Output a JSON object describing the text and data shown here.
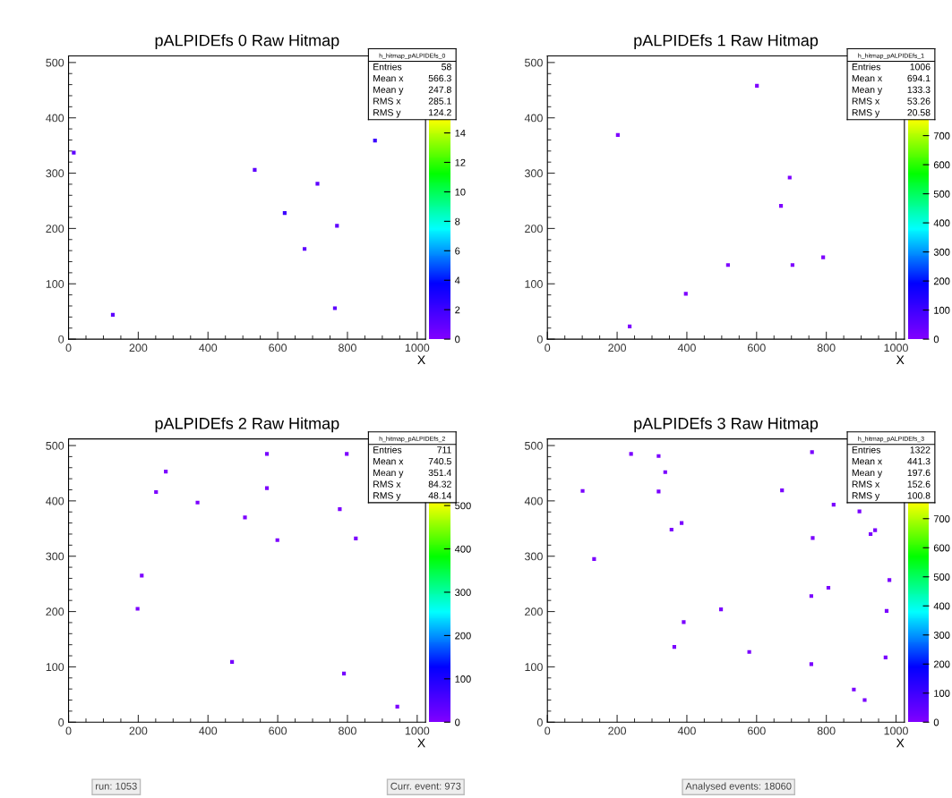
{
  "chart_data": [
    {
      "type": "scatter",
      "title": "pALPIDEfs 0 Raw Hitmap",
      "xlabel": "X",
      "xlim": [
        0,
        1024
      ],
      "ylim": [
        0,
        512
      ],
      "xticks": [
        0,
        200,
        400,
        600,
        800,
        1000
      ],
      "yticks": [
        0,
        100,
        200,
        300,
        400,
        500
      ],
      "marker": "square",
      "x": [
        127,
        534,
        620,
        770,
        677,
        714,
        879,
        764,
        15
      ],
      "values": [
        44,
        306,
        228,
        205,
        163,
        281,
        359,
        56,
        337
      ],
      "cvalues": [
        1,
        1,
        2,
        1,
        1,
        1,
        2,
        1,
        1
      ],
      "clim": [
        0,
        15
      ],
      "cticks": [
        0,
        2,
        4,
        6,
        8,
        10,
        12,
        14
      ],
      "annotations": [
        "h_hitmap_pALPIDEfs_0",
        "Entries\t58",
        "Mean x\t566.3",
        "Mean y\t247.8",
        "RMS x\t285.1",
        "RMS y\t124.2"
      ]
    },
    {
      "type": "scatter",
      "title": "pALPIDEfs 1 Raw Hitmap",
      "xlabel": "X",
      "xlim": [
        0,
        1024
      ],
      "ylim": [
        0,
        512
      ],
      "xticks": [
        0,
        200,
        400,
        600,
        800,
        1000
      ],
      "yticks": [
        0,
        100,
        200,
        300,
        400,
        500
      ],
      "marker": "square",
      "x": [
        202,
        601,
        695,
        670,
        518,
        703,
        791,
        397,
        236
      ],
      "values": [
        369,
        458,
        292,
        241,
        134,
        134,
        148,
        82,
        23
      ],
      "cvalues": [
        5,
        5,
        5,
        5,
        5,
        5,
        5,
        5,
        5
      ],
      "clim": [
        0,
        760
      ],
      "cticks": [
        0,
        100,
        200,
        300,
        400,
        500,
        600,
        700
      ],
      "annotations": [
        "h_hitmap_pALPIDEfs_1",
        "Entries\t1006",
        "Mean x\t694.1",
        "Mean y\t133.3",
        "RMS x\t53.26",
        "RMS y\t20.58"
      ]
    },
    {
      "type": "scatter",
      "title": "pALPIDEfs 2 Raw Hitmap",
      "xlabel": "X",
      "xlim": [
        0,
        1024
      ],
      "ylim": [
        0,
        512
      ],
      "xticks": [
        0,
        200,
        400,
        600,
        800,
        1000
      ],
      "yticks": [
        0,
        100,
        200,
        300,
        400,
        500
      ],
      "marker": "square",
      "x": [
        569,
        798,
        279,
        251,
        569,
        370,
        506,
        778,
        824,
        599,
        210,
        198,
        469,
        790,
        943
      ],
      "values": [
        485,
        485,
        453,
        416,
        423,
        397,
        370,
        385,
        332,
        329,
        265,
        205,
        109,
        88,
        28
      ],
      "cvalues": [
        10,
        5,
        5,
        5,
        5,
        5,
        5,
        5,
        5,
        5,
        5,
        5,
        10,
        10,
        5
      ],
      "clim": [
        0,
        510
      ],
      "cticks": [
        0,
        100,
        200,
        300,
        400,
        500
      ],
      "annotations": [
        "h_hitmap_pALPIDEfs_2",
        "Entries\t711",
        "Mean x\t740.5",
        "Mean y\t351.4",
        "RMS x\t84.32",
        "RMS y\t48.14"
      ]
    },
    {
      "type": "scatter",
      "title": "pALPIDEfs 3 Raw Hitmap",
      "xlabel": "X",
      "xlim": [
        0,
        1024
      ],
      "ylim": [
        0,
        512
      ],
      "xticks": [
        0,
        200,
        400,
        600,
        800,
        1000
      ],
      "yticks": [
        0,
        100,
        200,
        300,
        400,
        500
      ],
      "marker": "square",
      "x": [
        240,
        319,
        338,
        319,
        101,
        385,
        356,
        134,
        761,
        927,
        940,
        806,
        757,
        973,
        498,
        391,
        364,
        579,
        757,
        970,
        910,
        879,
        673,
        821,
        895,
        759,
        981
      ],
      "values": [
        485,
        481,
        452,
        417,
        418,
        360,
        348,
        295,
        333,
        340,
        347,
        243,
        228,
        201,
        204,
        181,
        136,
        127,
        105,
        117,
        40,
        59,
        419,
        393,
        381,
        488,
        257
      ],
      "cvalues": [
        10,
        10,
        10,
        10,
        10,
        10,
        10,
        10,
        10,
        10,
        10,
        10,
        10,
        10,
        10,
        10,
        10,
        10,
        10,
        10,
        10,
        10,
        10,
        10,
        10,
        10,
        10
      ],
      "clim": [
        0,
        760
      ],
      "cticks": [
        0,
        100,
        200,
        300,
        400,
        500,
        600,
        700
      ],
      "annotations": [
        "h_hitmap_pALPIDEfs_3",
        "Entries\t1322",
        "Mean x\t441.3",
        "Mean y\t197.6",
        "RMS x\t152.6",
        "RMS y\t100.8",
        "run: 1053",
        "Curr. event: 973",
        "Analysed events: 18060"
      ]
    }
  ]
}
